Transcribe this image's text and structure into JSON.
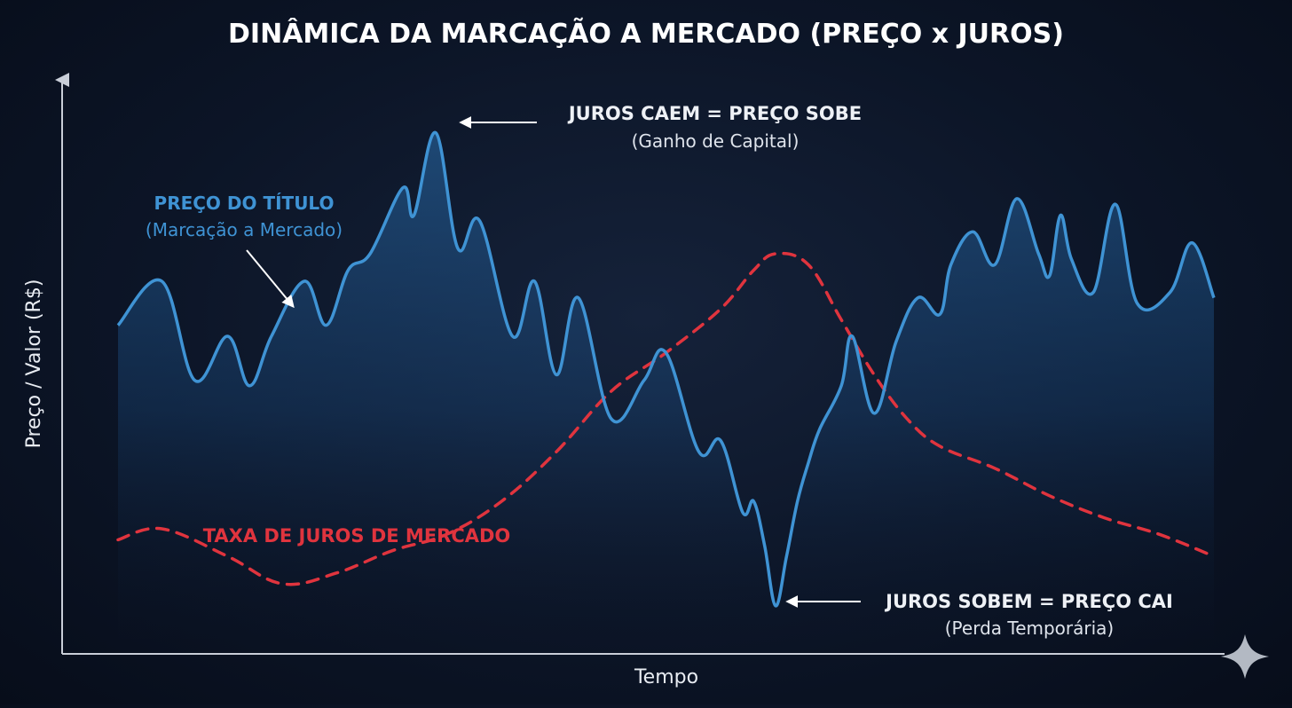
{
  "chart_data": {
    "type": "line",
    "title": "DINÂMICA DA MARCAÇÃO A MERCADO (PREÇO x JUROS)",
    "xlabel": "Tempo",
    "ylabel": "Preço / Valor (R$)",
    "colors": {
      "price": "#3f93d4",
      "rate": "#e0343e",
      "axis": "#c9ced8",
      "background": "#0c1527"
    },
    "series": [
      {
        "label": "PREÇO DO TÍTULO",
        "label_sub": "(Marcação a Mercado)",
        "style": "solid-filled",
        "points": [
          [
            0,
            57
          ],
          [
            4,
            65
          ],
          [
            7,
            47
          ],
          [
            10,
            55
          ],
          [
            12,
            46
          ],
          [
            14,
            55
          ],
          [
            17,
            65
          ],
          [
            19,
            57
          ],
          [
            21,
            67
          ],
          [
            23,
            70
          ],
          [
            26,
            82
          ],
          [
            27,
            77
          ],
          [
            29,
            92
          ],
          [
            31,
            71
          ],
          [
            33,
            76
          ],
          [
            36,
            55
          ],
          [
            38,
            65
          ],
          [
            40,
            48
          ],
          [
            42,
            62
          ],
          [
            45,
            40
          ],
          [
            48,
            47
          ],
          [
            50,
            52
          ],
          [
            53,
            34
          ],
          [
            55,
            36
          ],
          [
            57,
            23
          ],
          [
            58,
            25
          ],
          [
            59,
            17
          ],
          [
            60,
            6
          ],
          [
            61,
            15
          ],
          [
            62,
            25
          ],
          [
            63,
            32
          ],
          [
            64,
            38
          ],
          [
            66,
            46
          ],
          [
            67,
            55
          ],
          [
            69,
            41
          ],
          [
            71,
            54
          ],
          [
            73,
            62
          ],
          [
            75,
            59
          ],
          [
            76,
            68
          ],
          [
            78,
            74
          ],
          [
            80,
            68
          ],
          [
            82,
            80
          ],
          [
            84,
            70
          ],
          [
            85,
            66
          ],
          [
            86,
            77
          ],
          [
            87,
            69
          ],
          [
            89,
            63
          ],
          [
            91,
            79
          ],
          [
            93,
            61
          ],
          [
            96,
            63
          ],
          [
            98,
            72
          ],
          [
            100,
            62
          ]
        ]
      },
      {
        "label": "TAXA DE JUROS DE MERCADO",
        "style": "dashed",
        "points": [
          [
            0,
            18
          ],
          [
            4,
            20
          ],
          [
            10,
            15
          ],
          [
            15,
            10
          ],
          [
            20,
            12
          ],
          [
            25,
            16
          ],
          [
            30,
            19
          ],
          [
            35,
            25
          ],
          [
            40,
            34
          ],
          [
            45,
            45
          ],
          [
            50,
            52
          ],
          [
            55,
            60
          ],
          [
            58,
            67
          ],
          [
            60,
            70
          ],
          [
            63,
            68
          ],
          [
            66,
            58
          ],
          [
            69,
            48
          ],
          [
            72,
            40
          ],
          [
            75,
            35
          ],
          [
            80,
            31
          ],
          [
            85,
            26
          ],
          [
            90,
            22
          ],
          [
            95,
            19
          ],
          [
            100,
            15
          ]
        ]
      }
    ],
    "annotations": {
      "peak": {
        "title": "JUROS CAEM = PREÇO SOBE",
        "subtitle": "(Ganho de Capital)"
      },
      "trough": {
        "title": "JUROS SOBEM = PREÇO CAI",
        "subtitle": "(Perda Temporária)"
      }
    },
    "xlim": [
      0,
      100
    ],
    "ylim": [
      0,
      100
    ],
    "grid": false
  }
}
